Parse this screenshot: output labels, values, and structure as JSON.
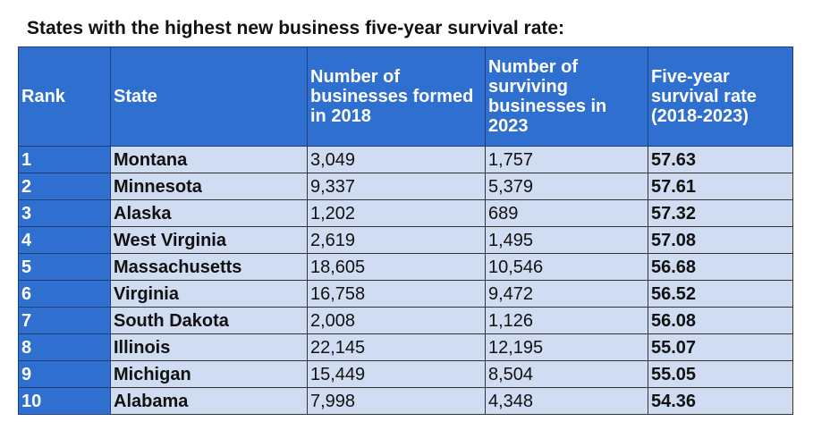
{
  "title": "States with the highest new business five-year survival rate:",
  "headers": {
    "rank": "Rank",
    "state": "State",
    "formed": "Number of businesses formed in 2018",
    "surviving": "Number of surviving businesses in 2023",
    "rate": "Five-year survival rate (2018-2023)"
  },
  "rows": [
    {
      "rank": "1",
      "state": "Montana",
      "formed": "3,049",
      "surviving": "1,757",
      "rate": "57.63"
    },
    {
      "rank": "2",
      "state": "Minnesota",
      "formed": "9,337",
      "surviving": "5,379",
      "rate": "57.61"
    },
    {
      "rank": "3",
      "state": "Alaska",
      "formed": "1,202",
      "surviving": "689",
      "rate": "57.32"
    },
    {
      "rank": "4",
      "state": "West Virginia",
      "formed": "2,619",
      "surviving": "1,495",
      "rate": "57.08"
    },
    {
      "rank": "5",
      "state": "Massachusetts",
      "formed": "18,605",
      "surviving": "10,546",
      "rate": "56.68"
    },
    {
      "rank": "6",
      "state": "Virginia",
      "formed": "16,758",
      "surviving": "9,472",
      "rate": "56.52"
    },
    {
      "rank": "7",
      "state": "South Dakota",
      "formed": "2,008",
      "surviving": "1,126",
      "rate": "56.08"
    },
    {
      "rank": "8",
      "state": "Illinois",
      "formed": "22,145",
      "surviving": "12,195",
      "rate": "55.07"
    },
    {
      "rank": "9",
      "state": "Michigan",
      "formed": "15,449",
      "surviving": "8,504",
      "rate": "55.05"
    },
    {
      "rank": "10",
      "state": "Alabama",
      "formed": "7,998",
      "surviving": "4,348",
      "rate": "54.36"
    }
  ],
  "colors": {
    "header_bg": "#2f6fd0",
    "cell_bg": "#cfdcf1"
  }
}
